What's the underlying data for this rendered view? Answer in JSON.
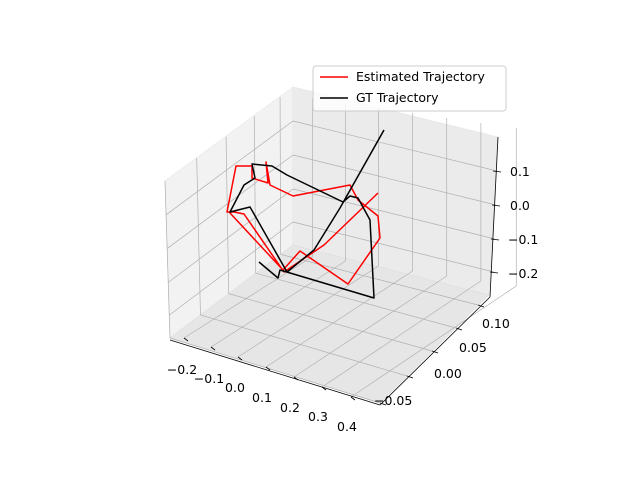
{
  "chart_data": {
    "type": "line3d",
    "title": "",
    "xlabel": "",
    "ylabel": "",
    "zlabel": "",
    "xlim": [
      -0.25,
      0.45
    ],
    "ylim": [
      -0.09,
      0.13
    ],
    "zlim": [
      -0.27,
      0.19
    ],
    "x_ticks": [
      "−0.2",
      "−0.1",
      "0.0",
      "0.1",
      "0.2",
      "0.3",
      "0.4"
    ],
    "y_ticks": [
      "−0.05",
      "0.00",
      "0.05",
      "0.10"
    ],
    "z_ticks": [
      "−0.2",
      "−0.1",
      "0.0",
      "0.1"
    ],
    "grid": true,
    "legend_position": "top-right",
    "series": [
      {
        "name": "Estimated Trajectory",
        "color": "#ff0000"
      },
      {
        "name": "GT Trajectory",
        "color": "#000000"
      }
    ]
  }
}
